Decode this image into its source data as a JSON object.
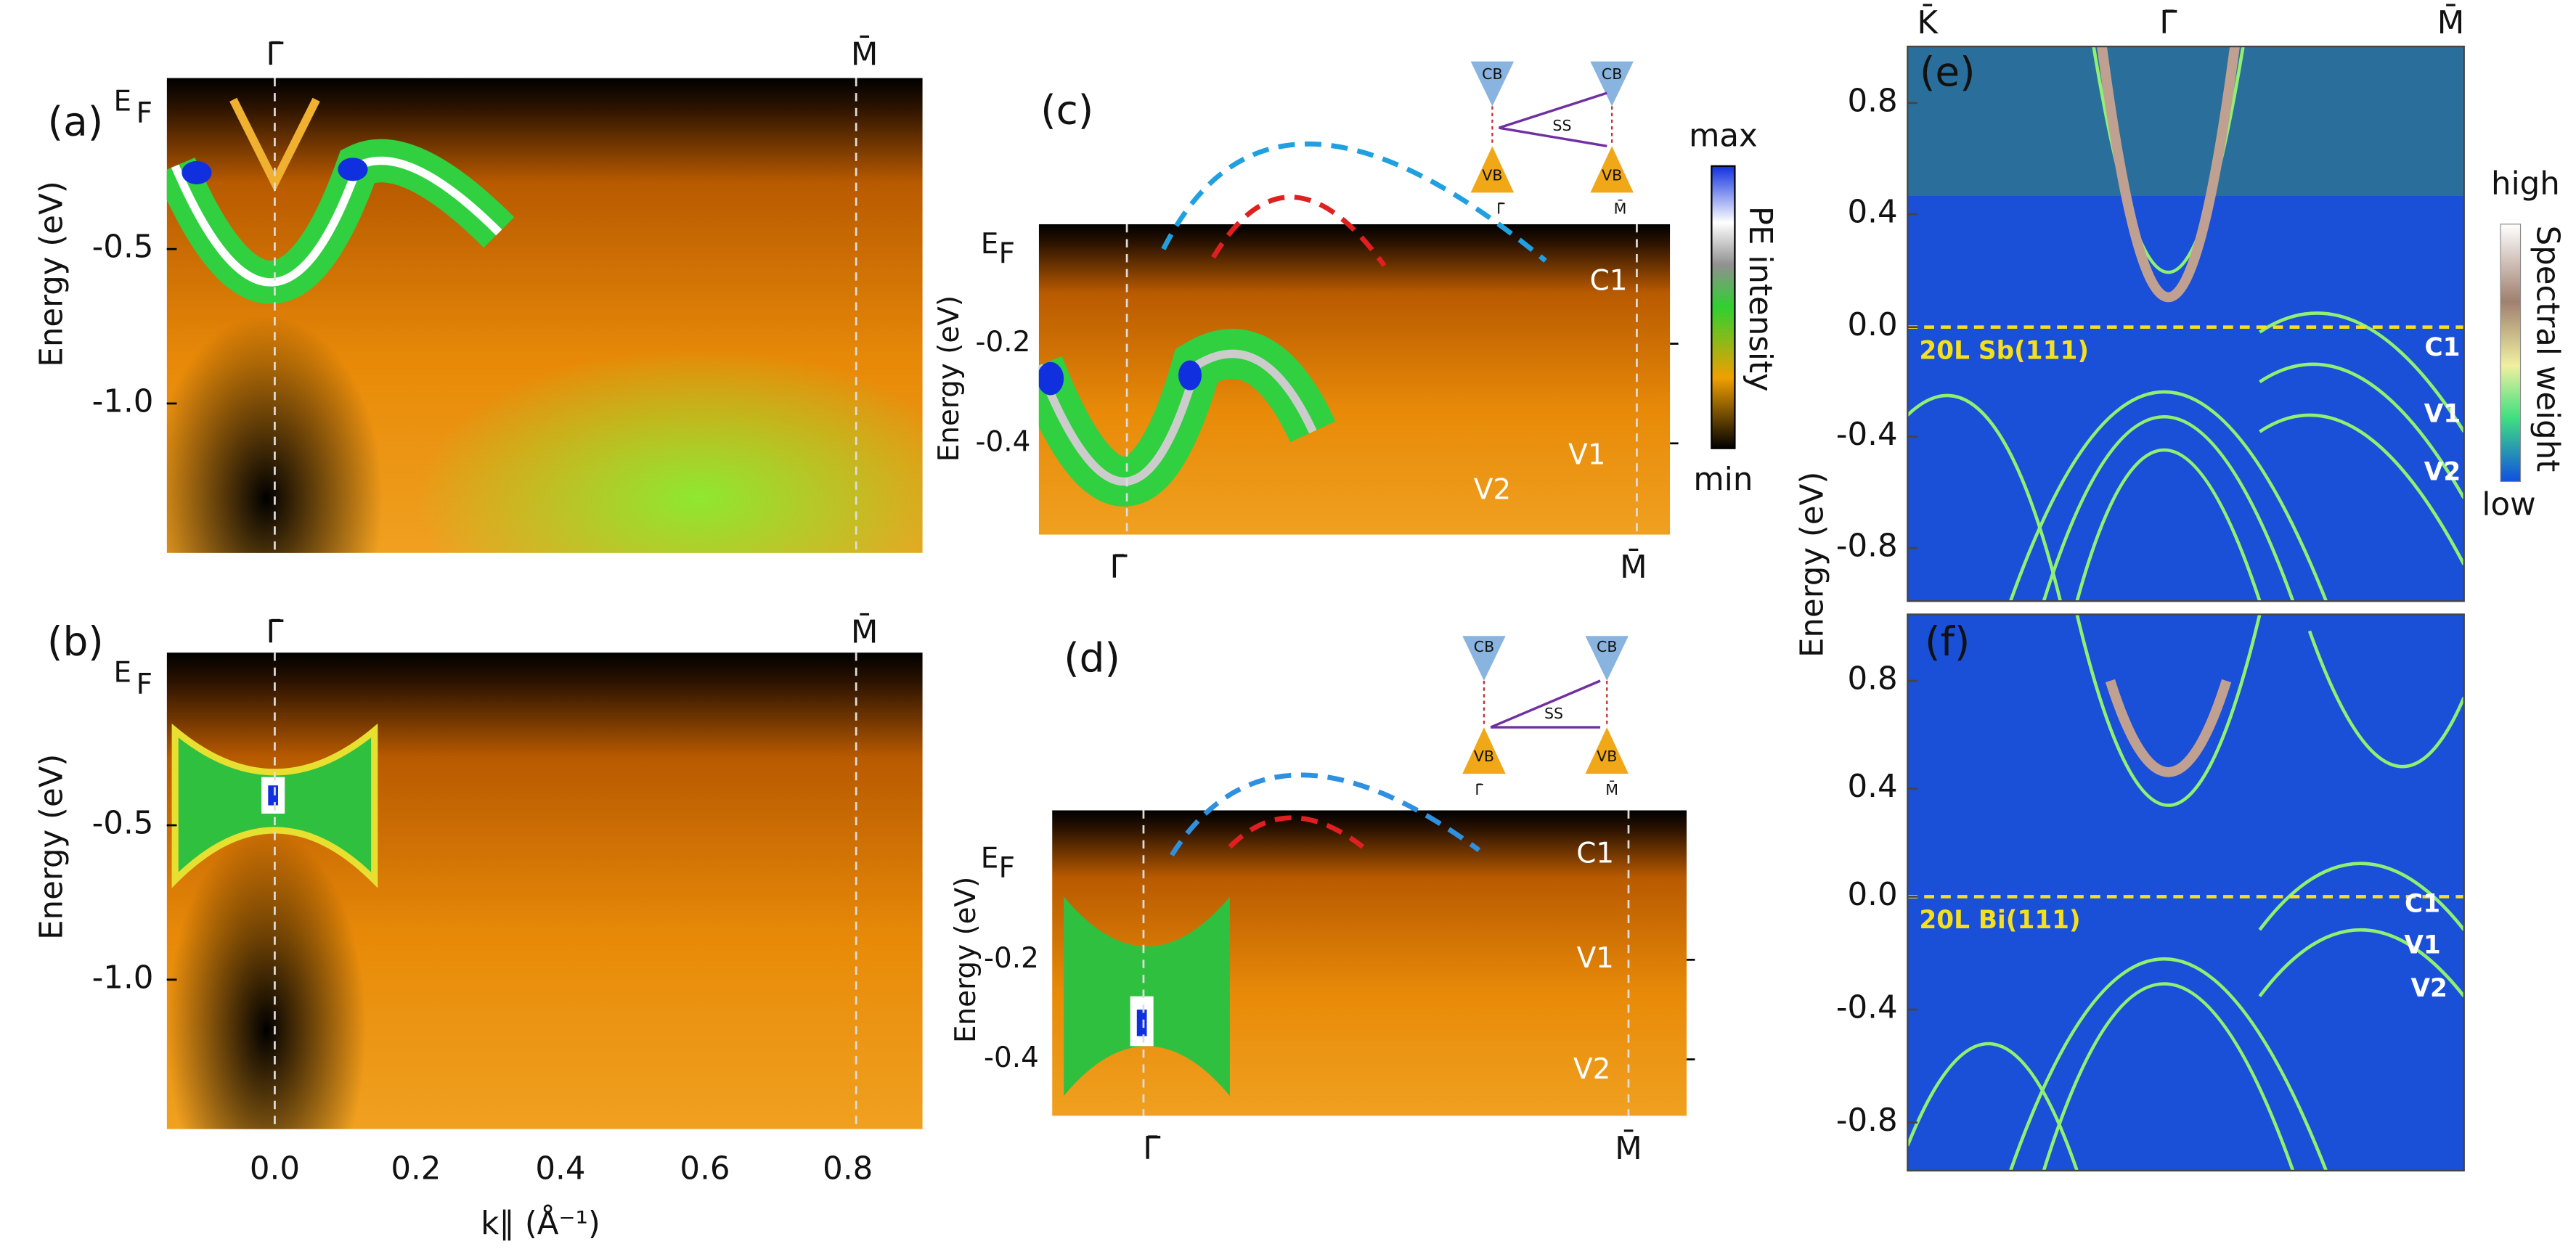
{
  "panel_a": {
    "label": "(a)",
    "top_labels": [
      "Γ̄",
      "M̄"
    ],
    "y_label": "Energy (eV)",
    "ef": [
      "E",
      "F"
    ],
    "yticks": [
      "-0.5",
      "-1.0"
    ]
  },
  "panel_b": {
    "label": "(b)",
    "top_labels": [
      "Γ̄",
      "M̄"
    ],
    "y_label": "Energy (eV)",
    "ef": [
      "E",
      "F"
    ],
    "yticks": [
      "-0.5",
      "-1.0"
    ],
    "xticks": [
      "0.0",
      "0.2",
      "0.4",
      "0.6",
      "0.8"
    ],
    "x_label": "k∥ (Å⁻¹)"
  },
  "panel_c": {
    "label": "(c)",
    "y_label": "Energy (eV)",
    "ef": [
      "E",
      "F"
    ],
    "yticks": [
      "-0.2",
      "-0.4"
    ],
    "bottom_labels": [
      "Γ̄",
      "M̄"
    ],
    "band_labels": [
      "C1",
      "V1",
      "V2"
    ],
    "inset": {
      "cb": [
        "CB",
        "CB"
      ],
      "vb": [
        "VB",
        "VB"
      ],
      "ss": "SS",
      "points": [
        "Γ̄",
        "M̄"
      ]
    },
    "colorbar": {
      "max": "max",
      "min": "min",
      "title": "PE intensity"
    }
  },
  "panel_d": {
    "label": "(d)",
    "y_label": "Energy (eV)",
    "ef": [
      "E",
      "F"
    ],
    "yticks": [
      "-0.2",
      "-0.4"
    ],
    "bottom_labels": [
      "Γ̄",
      "M̄"
    ],
    "band_labels": [
      "C1",
      "V1",
      "V2"
    ],
    "inset": {
      "cb": [
        "CB",
        "CB"
      ],
      "vb": [
        "VB",
        "VB"
      ],
      "ss": "SS",
      "points": [
        "Γ̄",
        "M̄"
      ]
    }
  },
  "panel_e": {
    "label": "(e)",
    "top_labels": [
      "K̄",
      "Γ̄",
      "M̄"
    ],
    "yticks": [
      "0.8",
      "0.4",
      "0.0",
      "-0.4",
      "-0.8"
    ],
    "film": "20L Sb(111)",
    "band_labels": [
      "C1",
      "V1",
      "V2"
    ],
    "colorbar": {
      "high": "high",
      "low": "low",
      "title": "Spectral weight"
    }
  },
  "panel_f": {
    "label": "(f)",
    "yticks": [
      "0.8",
      "0.4",
      "0.0",
      "-0.4",
      "-0.8"
    ],
    "film": "20L Bi(111)",
    "band_labels": [
      "C1",
      "V1",
      "V2"
    ]
  },
  "ef_y_label": "Energy (eV)"
}
